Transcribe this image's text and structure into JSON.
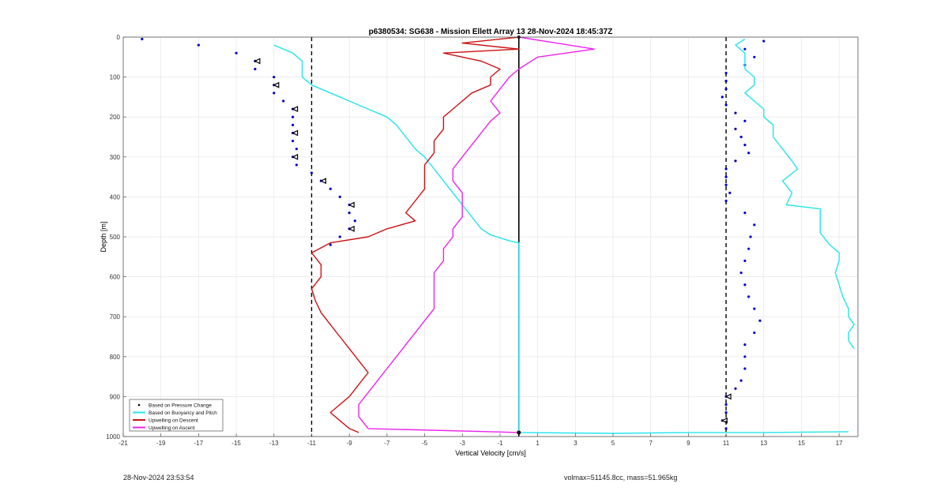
{
  "chart_data": {
    "type": "line",
    "title": "p6380534: SG638 - Mission Ellett Array 13 28-Nov-2024 18:45:37Z",
    "xlabel": "Vertical Velocity [cm/s]",
    "ylabel": "Depth [m]",
    "xlim": [
      -21,
      18
    ],
    "ylim": [
      0,
      1000
    ],
    "y_reversed": true,
    "grid": true,
    "legend_position": "bottom-left",
    "x_ticks": [
      -21,
      -19,
      -17,
      -15,
      -13,
      -11,
      -9,
      -7,
      -5,
      -3,
      -1,
      1,
      3,
      5,
      7,
      9,
      11,
      13,
      15,
      17
    ],
    "y_ticks": [
      0,
      100,
      200,
      300,
      400,
      500,
      600,
      700,
      800,
      900,
      1000
    ],
    "reference_lines": [
      {
        "x": -11,
        "style": "dashed",
        "color": "#000000"
      },
      {
        "x": 11,
        "style": "dashed",
        "color": "#000000"
      },
      {
        "x": 0,
        "style": "solid",
        "color": "#000000"
      }
    ],
    "series": [
      {
        "name": "Based on Pressure Change",
        "color": "#0000cc",
        "marker": "dot",
        "descent": [
          [
            -20,
            5
          ],
          [
            -17,
            20
          ],
          [
            -15,
            40
          ],
          [
            -14,
            60
          ],
          [
            -14,
            80
          ],
          [
            -13,
            100
          ],
          [
            -13,
            120
          ],
          [
            -13,
            140
          ],
          [
            -12.5,
            160
          ],
          [
            -12,
            180
          ],
          [
            -12,
            200
          ],
          [
            -12,
            220
          ],
          [
            -12,
            240
          ],
          [
            -12,
            260
          ],
          [
            -11.8,
            280
          ],
          [
            -12,
            300
          ],
          [
            -11.8,
            320
          ],
          [
            -11,
            340
          ],
          [
            -10.5,
            360
          ],
          [
            -10,
            380
          ],
          [
            -9.5,
            400
          ],
          [
            -9,
            420
          ],
          [
            -9,
            440
          ],
          [
            -8.7,
            460
          ],
          [
            -9,
            480
          ],
          [
            -9.5,
            500
          ],
          [
            -10,
            520
          ]
        ],
        "ascent": [
          [
            13,
            10
          ],
          [
            12,
            30
          ],
          [
            12.5,
            50
          ],
          [
            12,
            70
          ],
          [
            11,
            90
          ],
          [
            11,
            110
          ],
          [
            11,
            130
          ],
          [
            10.8,
            150
          ],
          [
            11,
            170
          ],
          [
            11.5,
            190
          ],
          [
            12,
            210
          ],
          [
            11.5,
            230
          ],
          [
            11.8,
            250
          ],
          [
            12,
            270
          ],
          [
            12.2,
            290
          ],
          [
            11.5,
            310
          ],
          [
            11,
            330
          ],
          [
            11,
            350
          ],
          [
            11,
            370
          ],
          [
            11.2,
            390
          ],
          [
            11,
            410
          ],
          [
            12,
            440
          ],
          [
            12.5,
            470
          ],
          [
            12.3,
            500
          ],
          [
            12.2,
            530
          ],
          [
            12,
            560
          ],
          [
            11.8,
            590
          ],
          [
            12,
            620
          ],
          [
            12.2,
            650
          ],
          [
            12.5,
            680
          ],
          [
            12.8,
            710
          ],
          [
            12.5,
            740
          ],
          [
            12,
            770
          ],
          [
            12,
            800
          ],
          [
            12,
            830
          ],
          [
            11.8,
            860
          ],
          [
            11.5,
            880
          ],
          [
            11,
            900
          ],
          [
            11,
            920
          ],
          [
            11,
            940
          ],
          [
            10.8,
            960
          ],
          [
            11,
            980
          ]
        ]
      },
      {
        "name": "Based on Buoyancy and Pitch",
        "color": "#22e5ee",
        "marker": "none",
        "descent": [
          [
            -13,
            20
          ],
          [
            -12,
            40
          ],
          [
            -11.5,
            60
          ],
          [
            -11.5,
            80
          ],
          [
            -11.5,
            100
          ],
          [
            -11,
            120
          ],
          [
            -10,
            140
          ],
          [
            -9,
            160
          ],
          [
            -8,
            180
          ],
          [
            -7,
            200
          ],
          [
            -6.5,
            220
          ],
          [
            -6,
            250
          ],
          [
            -5.5,
            280
          ],
          [
            -5,
            300
          ],
          [
            -4.5,
            330
          ],
          [
            -4,
            360
          ],
          [
            -3.5,
            390
          ],
          [
            -3,
            420
          ],
          [
            -2.5,
            450
          ],
          [
            -2,
            480
          ],
          [
            -1.5,
            495
          ],
          [
            -0.5,
            510
          ],
          [
            0,
            515
          ],
          [
            0,
            600
          ],
          [
            0,
            700
          ],
          [
            0,
            800
          ],
          [
            0,
            900
          ],
          [
            0,
            990
          ],
          [
            5,
            992
          ],
          [
            9,
            990
          ],
          [
            13,
            990
          ],
          [
            17.5,
            988
          ]
        ],
        "ascent": [
          [
            12,
            5
          ],
          [
            11.5,
            20
          ],
          [
            12,
            40
          ],
          [
            12,
            60
          ],
          [
            12,
            80
          ],
          [
            12.5,
            100
          ],
          [
            12.5,
            120
          ],
          [
            12,
            140
          ],
          [
            12.5,
            160
          ],
          [
            13,
            180
          ],
          [
            13,
            200
          ],
          [
            13.5,
            220
          ],
          [
            13.5,
            250
          ],
          [
            14,
            280
          ],
          [
            14.5,
            310
          ],
          [
            14.8,
            330
          ],
          [
            14,
            360
          ],
          [
            14.5,
            390
          ],
          [
            14.2,
            420
          ],
          [
            16,
            430
          ],
          [
            16,
            460
          ],
          [
            16,
            490
          ],
          [
            16.5,
            520
          ],
          [
            17,
            540
          ],
          [
            17,
            560
          ],
          [
            16.8,
            590
          ],
          [
            17,
            620
          ],
          [
            17.2,
            650
          ],
          [
            17.5,
            680
          ],
          [
            17.5,
            700
          ],
          [
            17.8,
            720
          ],
          [
            17.5,
            740
          ],
          [
            17.5,
            760
          ],
          [
            17.8,
            780
          ]
        ]
      },
      {
        "name": "Upwelling on Descent",
        "color": "#cc1111",
        "marker": "none",
        "values": [
          [
            0,
            0
          ],
          [
            -3,
            15
          ],
          [
            0,
            30
          ],
          [
            -4,
            40
          ],
          [
            -2,
            60
          ],
          [
            -1,
            80
          ],
          [
            -1.5,
            100
          ],
          [
            -1.5,
            120
          ],
          [
            -2.5,
            140
          ],
          [
            -3,
            160
          ],
          [
            -3.5,
            180
          ],
          [
            -4,
            200
          ],
          [
            -4,
            230
          ],
          [
            -4.5,
            260
          ],
          [
            -4.5,
            290
          ],
          [
            -5,
            320
          ],
          [
            -5,
            350
          ],
          [
            -5,
            380
          ],
          [
            -5.5,
            410
          ],
          [
            -6,
            440
          ],
          [
            -5.5,
            460
          ],
          [
            -7,
            480
          ],
          [
            -8,
            500
          ],
          [
            -10,
            515
          ],
          [
            -11,
            540
          ],
          [
            -10.5,
            570
          ],
          [
            -10.5,
            600
          ],
          [
            -11,
            630
          ],
          [
            -10.8,
            660
          ],
          [
            -10.5,
            690
          ],
          [
            -10,
            720
          ],
          [
            -9.5,
            750
          ],
          [
            -9,
            780
          ],
          [
            -8.5,
            810
          ],
          [
            -8,
            840
          ],
          [
            -8.5,
            870
          ],
          [
            -9,
            900
          ],
          [
            -9.5,
            920
          ],
          [
            -10,
            940
          ],
          [
            -9.5,
            960
          ],
          [
            -9,
            980
          ],
          [
            -8.5,
            990
          ]
        ]
      },
      {
        "name": "Upwelling on Ascent",
        "color": "#ee22ee",
        "marker": "none",
        "values": [
          [
            0,
            0
          ],
          [
            2,
            15
          ],
          [
            4,
            30
          ],
          [
            1,
            50
          ],
          [
            0,
            80
          ],
          [
            -0.5,
            100
          ],
          [
            -1,
            130
          ],
          [
            -1.5,
            160
          ],
          [
            -1,
            190
          ],
          [
            -1.5,
            210
          ],
          [
            -2,
            240
          ],
          [
            -2.5,
            270
          ],
          [
            -3,
            300
          ],
          [
            -3.5,
            330
          ],
          [
            -3.5,
            360
          ],
          [
            -3,
            390
          ],
          [
            -3,
            420
          ],
          [
            -3,
            450
          ],
          [
            -3.5,
            480
          ],
          [
            -3.5,
            500
          ],
          [
            -4,
            530
          ],
          [
            -4,
            560
          ],
          [
            -4.5,
            590
          ],
          [
            -4.5,
            620
          ],
          [
            -4.5,
            650
          ],
          [
            -4.5,
            680
          ],
          [
            -5,
            710
          ],
          [
            -5.5,
            740
          ],
          [
            -6,
            770
          ],
          [
            -6.5,
            800
          ],
          [
            -7,
            830
          ],
          [
            -7.5,
            860
          ],
          [
            -8,
            890
          ],
          [
            -8.5,
            920
          ],
          [
            -8.5,
            950
          ],
          [
            -8,
            980
          ],
          [
            0,
            990
          ]
        ]
      }
    ],
    "legend": [
      {
        "label": "Based on Pressure Change",
        "color": "#000000",
        "style": "dot"
      },
      {
        "label": "Based on Buoyancy and Pitch",
        "color": "#22e5ee",
        "style": "line"
      },
      {
        "label": "Upwelling on Descent",
        "color": "#cc1111",
        "style": "line"
      },
      {
        "label": "Upwelling on Ascent",
        "color": "#ee22ee",
        "style": "line"
      }
    ]
  },
  "footer": {
    "timestamp": "28-Nov-2024 23:53:54",
    "volmax_mass": "volmax=51145.8cc, mass=51.965kg"
  }
}
